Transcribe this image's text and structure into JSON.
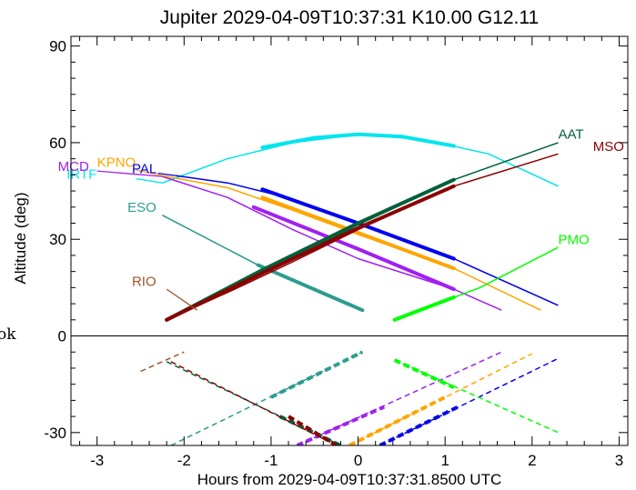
{
  "chart_data": {
    "type": "line",
    "title": "Jupiter 2029-04-09T10:37:31  K10.00  G12.11",
    "xlabel": "Hours from 2029-04-09T10:37:31.8500 UTC",
    "ylabel": "Altitude (deg)",
    "xlim": [
      -3.3,
      3.1
    ],
    "ylim": [
      -34,
      93
    ],
    "xticks": [
      -3,
      -2,
      -1,
      0,
      1,
      2,
      3
    ],
    "yticks": [
      -30,
      0,
      30,
      60,
      90
    ],
    "side_text": "ok",
    "series": [
      {
        "name": "IRTF",
        "color": "#00e5ee",
        "label_x": -3.35,
        "label_y": 48.8,
        "leader": [
          [
            -2.55,
            48.8
          ],
          [
            -2.25,
            47.5
          ]
        ],
        "solid": [
          [
            -2.25,
            47.5
          ],
          [
            -1.5,
            55
          ],
          [
            -0.75,
            60
          ],
          [
            0,
            62.5
          ],
          [
            0.75,
            61
          ],
          [
            1.5,
            56.5
          ],
          [
            2.3,
            46.5
          ]
        ],
        "thick": [
          [
            -1.1,
            58.5
          ],
          [
            -0.5,
            61.5
          ],
          [
            0,
            62.6
          ],
          [
            0.5,
            61.9
          ],
          [
            1.1,
            59
          ]
        ],
        "dashed": []
      },
      {
        "name": "MCD",
        "color": "#a020f0",
        "label_x": -3.45,
        "label_y": 51.2,
        "leader": [
          [
            -3.0,
            51.2
          ],
          [
            -2.25,
            49.5
          ]
        ],
        "solid": [
          [
            -2.25,
            49.5
          ],
          [
            -1.5,
            43
          ],
          [
            -0.75,
            33
          ],
          [
            0,
            24
          ],
          [
            1.1,
            14.5
          ],
          [
            1.65,
            8
          ]
        ],
        "thick": [
          [
            -1.2,
            40
          ],
          [
            0,
            27
          ],
          [
            1.1,
            14.5
          ]
        ],
        "dashed": [
          [
            -0.7,
            -34
          ],
          [
            1.65,
            -5
          ]
        ],
        "thickdash": [
          [
            -0.7,
            -34
          ],
          [
            0.3,
            -22
          ]
        ]
      },
      {
        "name": "KPNO",
        "color": "#ffa500",
        "label_x": -3.0,
        "label_y": 52.5,
        "leader": [
          [
            -2.55,
            51.5
          ],
          [
            -2.25,
            49.8
          ]
        ],
        "solid": [
          [
            -2.25,
            49.8
          ],
          [
            -1.5,
            46
          ],
          [
            -0.75,
            39
          ],
          [
            0,
            31.5
          ],
          [
            1.1,
            21
          ],
          [
            2.1,
            8
          ]
        ],
        "thick": [
          [
            -1.1,
            43
          ],
          [
            0,
            32
          ],
          [
            1.1,
            21
          ]
        ],
        "dashed": [
          [
            -0.1,
            -34
          ],
          [
            2.0,
            -5.5
          ]
        ],
        "thickdash": [
          [
            -0.1,
            -34
          ],
          [
            1.0,
            -19
          ]
        ]
      },
      {
        "name": "PAL",
        "color": "#0000ee",
        "label_x": -2.6,
        "label_y": 50.5,
        "leader": [
          [
            -2.3,
            50.5
          ],
          [
            -2.1,
            49.8
          ]
        ],
        "solid": [
          [
            -2.1,
            49.8
          ],
          [
            -1.5,
            47.5
          ],
          [
            -0.75,
            42.5
          ],
          [
            0,
            35
          ],
          [
            1.1,
            24
          ],
          [
            2.3,
            9.5
          ]
        ],
        "thick": [
          [
            -1.1,
            45.5
          ],
          [
            0,
            35
          ],
          [
            1.1,
            24
          ]
        ],
        "dashed": [
          [
            0.25,
            -34
          ],
          [
            2.3,
            -7
          ]
        ],
        "thickdash": [
          [
            0.25,
            -34
          ],
          [
            1.15,
            -22
          ]
        ]
      },
      {
        "name": "ESO",
        "color": "#2e9b8f",
        "label_x": -2.65,
        "label_y": 38.5,
        "leader": [
          [
            -2.25,
            37.5
          ],
          [
            -1.15,
            22
          ]
        ],
        "solid": [
          [
            -2.25,
            37.5
          ],
          [
            -1.15,
            22
          ],
          [
            0.05,
            8
          ]
        ],
        "thick": [
          [
            -1.15,
            22
          ],
          [
            0.05,
            8
          ]
        ],
        "dashed": [
          [
            -2.15,
            -34
          ],
          [
            0.05,
            -5
          ]
        ],
        "thickdash": [
          [
            -1.0,
            -19
          ],
          [
            0.05,
            -5
          ]
        ]
      },
      {
        "name": "RIO",
        "color": "#a0522d",
        "label_x": -2.6,
        "label_y": 15.5,
        "leader": [
          [
            -2.2,
            14.5
          ],
          [
            -1.85,
            8
          ]
        ],
        "solid": [],
        "thick": [],
        "dashed": [
          [
            -2.5,
            -11
          ],
          [
            -2.0,
            -5
          ]
        ],
        "thickdash": []
      },
      {
        "name": "AAT",
        "color": "#00603a",
        "label_x": 2.3,
        "label_y": 61.2,
        "leader": [],
        "solid": [
          [
            -2.2,
            5
          ],
          [
            -1.5,
            15
          ],
          [
            -0.75,
            24
          ],
          [
            0,
            34.5
          ],
          [
            1.1,
            48.5
          ],
          [
            2.3,
            60
          ]
        ],
        "thick": [
          [
            -2.2,
            5
          ],
          [
            -1.1,
            20.5
          ],
          [
            0,
            35
          ],
          [
            1.1,
            48.5
          ]
        ],
        "dashed": [
          [
            -2.2,
            -8
          ],
          [
            -0.2,
            -34
          ]
        ],
        "thickdash": [
          [
            -0.9,
            -25
          ],
          [
            -0.2,
            -34
          ]
        ]
      },
      {
        "name": "MSO",
        "color": "#8b0000",
        "label_x": 2.7,
        "label_y": 57.5,
        "leader": [],
        "solid": [
          [
            -2.2,
            5
          ],
          [
            -1.5,
            13.5
          ],
          [
            -0.75,
            23
          ],
          [
            0,
            33
          ],
          [
            1.1,
            46.5
          ],
          [
            2.3,
            56.5
          ]
        ],
        "thick": [
          [
            -2.2,
            5
          ],
          [
            -1.1,
            19.5
          ],
          [
            0,
            33.5
          ],
          [
            1.1,
            46.5
          ]
        ],
        "dashed": [
          [
            -2.15,
            -8
          ],
          [
            -0.25,
            -34
          ]
        ],
        "thickdash": [
          [
            -0.8,
            -25
          ],
          [
            -0.25,
            -34
          ]
        ]
      },
      {
        "name": "PMO",
        "color": "#00ff00",
        "label_x": 2.3,
        "label_y": 28.5,
        "leader": [],
        "solid": [
          [
            0.42,
            5
          ],
          [
            1.4,
            15
          ],
          [
            2.3,
            27.5
          ]
        ],
        "thick": [
          [
            0.42,
            5
          ],
          [
            1.1,
            12
          ]
        ],
        "dashed": [
          [
            0.42,
            -7.5
          ],
          [
            2.3,
            -30
          ]
        ],
        "thickdash": [
          [
            0.42,
            -7.5
          ],
          [
            1.1,
            -16
          ]
        ]
      }
    ]
  }
}
